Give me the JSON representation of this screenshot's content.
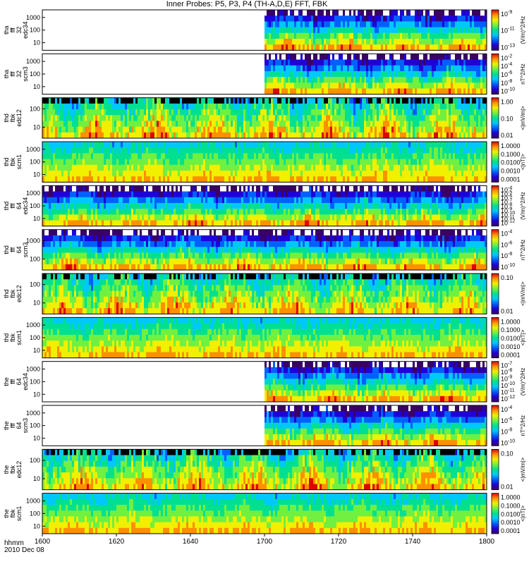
{
  "chart_data": {
    "type": "heatmap",
    "title": "Inner Probes: P5, P3, P4 (TH-A,D,E) FFT, FBK",
    "x_tick_labels": [
      "1600",
      "1620",
      "1640",
      "1700",
      "1720",
      "1740",
      "1800"
    ],
    "x_axis_caption": [
      "hhmm",
      "2010 Dec 08"
    ],
    "panels": [
      {
        "ylabel": [
          "tha",
          "fff",
          "32",
          "edc34"
        ],
        "ytick_labels": [
          "1000",
          "100",
          "10"
        ],
        "cbar_ticks": [
          "10^-9",
          "10^-11",
          "10^-13"
        ],
        "cbar_label": "(V/m)^2/Hz",
        "data_start": 0.5,
        "palette": "deep"
      },
      {
        "ylabel": [
          "tha",
          "fff",
          "32",
          "scm3"
        ],
        "ytick_labels": [
          "1000",
          "100",
          "10"
        ],
        "cbar_ticks": [
          "10^-2",
          "10^-4",
          "10^-6",
          "10^-8",
          "10^-10"
        ],
        "cbar_label": "nT^2/Hz",
        "data_start": 0.5,
        "palette": "deep"
      },
      {
        "ylabel": [
          "thd",
          "fbk",
          "edc12"
        ],
        "ytick_labels": [
          "100",
          "10"
        ],
        "cbar_ticks": [
          "1.00",
          "0.10",
          "0.01"
        ],
        "cbar_label": "<|mV/m|>",
        "data_start": 0,
        "palette": "mixed"
      },
      {
        "ylabel": [
          "thd",
          "fbk",
          "scm1"
        ],
        "ytick_labels": [
          "1000",
          "100",
          "10"
        ],
        "cbar_ticks": [
          "1.0000",
          "0.1000",
          "0.0100",
          "0.0010",
          "0.0001"
        ],
        "cbar_label": "<|nT|>",
        "data_start": 0,
        "palette": "banded"
      },
      {
        "ylabel": [
          "thd",
          "fff",
          "64",
          "edc34"
        ],
        "ytick_labels": [
          "1000",
          "100",
          "10"
        ],
        "cbar_ticks": [
          "10^-4",
          "10^-5",
          "10^-6",
          "10^-7",
          "10^-8",
          "10^-9",
          "10^-10",
          "10^-11",
          "10^-12"
        ],
        "cbar_label": "(V/m)^2/Hz",
        "data_start": 0,
        "palette": "deep"
      },
      {
        "ylabel": [
          "thd",
          "fff",
          "64",
          "scm3"
        ],
        "ytick_labels": [
          "1000",
          "100"
        ],
        "cbar_ticks": [
          "10^-4",
          "10^-6",
          "10^-8",
          "10^-10"
        ],
        "cbar_label": "nT^2/Hz",
        "data_start": 0,
        "palette": "deep"
      },
      {
        "ylabel": [
          "thd",
          "fbk",
          "edc12"
        ],
        "ytick_labels": [
          "100",
          "10"
        ],
        "cbar_ticks": [
          "0.10",
          "0.01"
        ],
        "cbar_label": "<|mV/m|>",
        "data_start": 0,
        "palette": "mixed"
      },
      {
        "ylabel": [
          "thd",
          "fbk",
          "scm1"
        ],
        "ytick_labels": [
          "1000",
          "100",
          "10"
        ],
        "cbar_ticks": [
          "1.0000",
          "0.1000",
          "0.0100",
          "0.0010",
          "0.0001"
        ],
        "cbar_label": "<|nT|>",
        "data_start": 0,
        "palette": "banded"
      },
      {
        "ylabel": [
          "the",
          "fff",
          "64",
          "edc34"
        ],
        "ytick_labels": [
          "1000",
          "100",
          "10"
        ],
        "cbar_ticks": [
          "10^-7",
          "10^-8",
          "10^-9",
          "10^-10",
          "10^-11",
          "10^-12"
        ],
        "cbar_label": "(V/m)^2/Hz",
        "data_start": 0.5,
        "palette": "deep"
      },
      {
        "ylabel": [
          "the",
          "fff",
          "64",
          "scm3"
        ],
        "ytick_labels": [
          "1000",
          "100",
          "10"
        ],
        "cbar_ticks": [
          "10^-4",
          "10^-6",
          "10^-8",
          "10^-10"
        ],
        "cbar_label": "nT^2/Hz",
        "data_start": 0.5,
        "palette": "deep"
      },
      {
        "ylabel": [
          "the",
          "fbk",
          "edc12"
        ],
        "ytick_labels": [
          "100",
          "10"
        ],
        "cbar_ticks": [
          "0.10",
          "0.01"
        ],
        "cbar_label": "<|mV/m|>",
        "data_start": 0,
        "palette": "mixed"
      },
      {
        "ylabel": [
          "the",
          "fbk",
          "scm1"
        ],
        "ytick_labels": [
          "1000",
          "100",
          "10"
        ],
        "cbar_ticks": [
          "1.0000",
          "0.1000",
          "0.0100",
          "0.0010",
          "0.0001"
        ],
        "cbar_label": "<|nT|>",
        "data_start": 0,
        "palette": "banded"
      }
    ],
    "colorbar_colors": [
      "#3a0064",
      "#1f00d8",
      "#0060ff",
      "#00c8ff",
      "#00e090",
      "#70f040",
      "#f0f000",
      "#ff9000",
      "#e00000"
    ]
  }
}
